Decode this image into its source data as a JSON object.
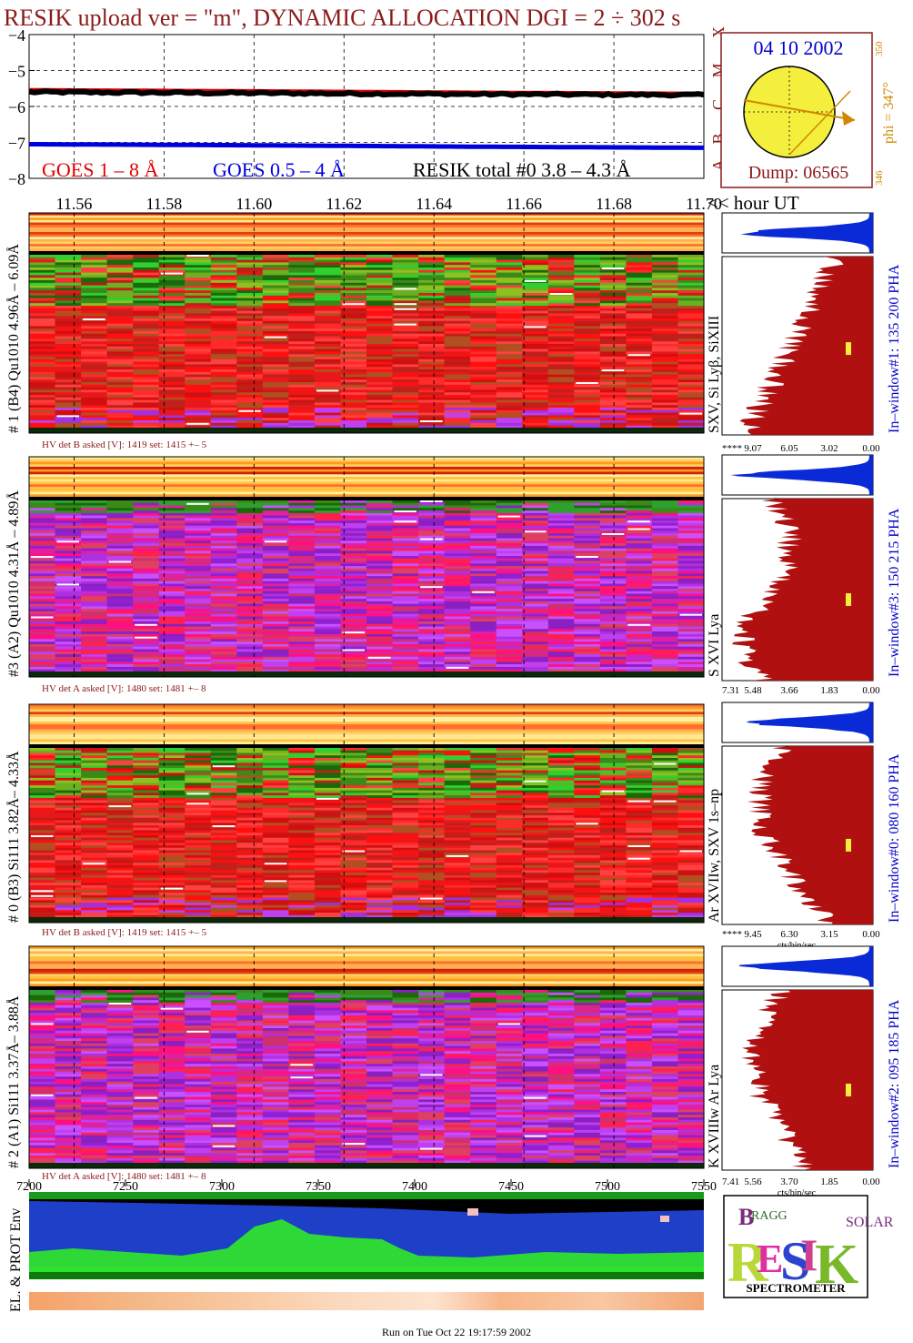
{
  "header": {
    "title": "RESIK upload ver = \"m\", DYNAMIC ALLOCATION  DGI =   2 ÷ 302 s"
  },
  "goes": {
    "y_ticks": [
      "−4",
      "−5",
      "−6",
      "−7",
      "−8"
    ],
    "legend_red": "GOES 1 – 8 Å",
    "legend_blue": "GOES 0.5 – 4 Å",
    "legend_black": "RESIK total #0  3.8 – 4.3 Å",
    "class_letters": [
      "A",
      "B",
      "C",
      "M",
      "X"
    ],
    "colors": {
      "red": "#e00000",
      "blue": "#0000dd",
      "black": "#000000"
    }
  },
  "sun": {
    "date": "04 10 2002",
    "phi": "phi = 347°",
    "scale_top": "350",
    "scale_bottom": "346",
    "dump": "Dump: 06565"
  },
  "hour_axis": {
    "ticks": [
      "11.56",
      "11.58",
      "11.60",
      "11.62",
      "11.64",
      "11.66",
      "11.68",
      "11.70"
    ],
    "unit_label": "<< hour UT"
  },
  "panels": [
    {
      "left_label": "# 1 (B4) Qu1010 4.96Å – 6.09Å",
      "right_label": "SXV, Si Lyβ, SiXIII",
      "window_label": "In–window#1:  135 200 PHA",
      "hv_text": "HV det B asked [V]:  1419 set:  1415  +–    5",
      "x_scale": [
        "****",
        "9.07",
        "6.05",
        "3.02",
        "0.00"
      ],
      "theme": "red"
    },
    {
      "left_label": "#3 (A2) Qu1010  4.31Å – 4.89Å",
      "right_label": "S XVI Lya",
      "window_label": "In–window#3:  150 215 PHA",
      "hv_text": "HV det A asked [V]:  1480 set:  1481  +–    8",
      "x_scale": [
        "7.31",
        "5.48",
        "3.66",
        "1.83",
        "0.00"
      ],
      "theme": "purple"
    },
    {
      "left_label": "# 0 (B3) Si111  3.82Å– 4.33Å",
      "right_label": "Ar XVIIw,  SXV 1s–np",
      "window_label": "In–window#0:  080 160 PHA",
      "hv_text": "HV det B asked [V]:  1419 set:  1415  +–    5",
      "x_scale": [
        "****",
        "9.45",
        "6.30",
        "3.15",
        "0.00"
      ],
      "x_unit": "cts/bin/sec",
      "theme": "red"
    },
    {
      "left_label": "# 2 (A1) Si111  3.37Å– 3.88Å",
      "right_label": "K XVIIIw  Ar Lya",
      "window_label": "In–window#2:  095 185 PHA",
      "hv_text": "HV det A asked [V]:  1480 set:  1481  +–    8",
      "x_scale": [
        "7.41",
        "5.56",
        "3.70",
        "1.85",
        "0.00"
      ],
      "x_unit": "cts/bin/sec",
      "theme": "purple"
    }
  ],
  "bottom_axis": {
    "ticks": [
      "7200",
      "7250",
      "7300",
      "7350",
      "7400",
      "7450",
      "7500",
      "7550"
    ]
  },
  "env": {
    "label": "EL. & PROT Env"
  },
  "logo": {
    "letters": "RESIK",
    "bragg": "BRAGG",
    "solar": "SOLAR",
    "caption": "SPECTROMETER"
  },
  "footer": {
    "text": "Run on Tue Oct 22 19:17:59 2002"
  },
  "chart_data": [
    {
      "type": "line",
      "xlabel": "",
      "ylabel": "",
      "x_range_hours": [
        11.55,
        11.7
      ],
      "ylim": [
        -8,
        -4
      ],
      "grid": true,
      "series": [
        {
          "name": "GOES 1 – 8 Å",
          "x": [
            11.55,
            11.6,
            11.65,
            11.7
          ],
          "values": [
            -5.55,
            -5.58,
            -5.62,
            -5.65
          ]
        },
        {
          "name": "GOES 0.5 – 4 Å",
          "x": [
            11.55,
            11.6,
            11.65,
            11.7
          ],
          "values": [
            -7.05,
            -7.08,
            -7.12,
            -7.15
          ]
        },
        {
          "name": "RESIK total #0  3.8 – 4.3 Å",
          "x": [
            11.55,
            11.6,
            11.65,
            11.7
          ],
          "values": [
            -5.6,
            -5.63,
            -5.66,
            -5.68
          ]
        }
      ]
    },
    {
      "type": "heatmap",
      "x_axis_top": "hour UT",
      "x_axis_bottom_range": [
        7200,
        7550
      ],
      "panels": 4
    }
  ]
}
